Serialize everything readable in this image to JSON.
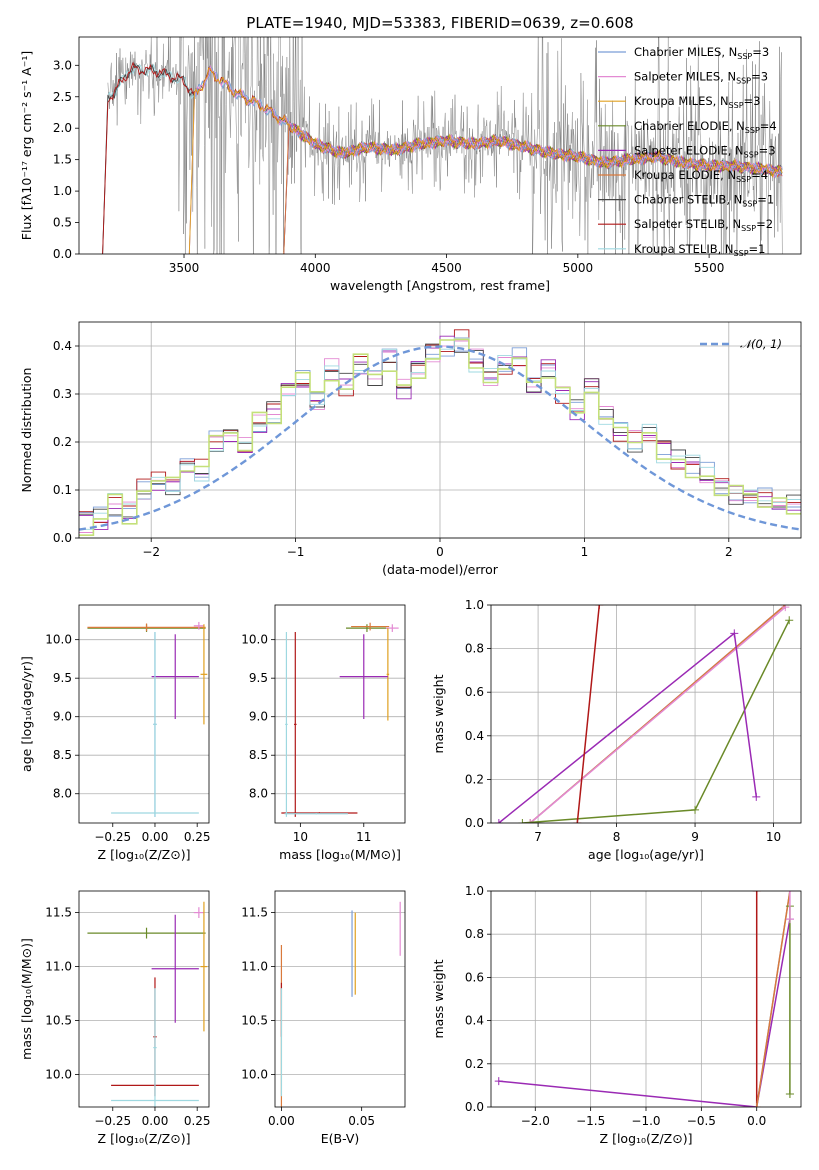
{
  "title": "PLATE=1940, MJD=53383, FIBERID=0639, z=0.608",
  "palette": {
    "Chabrier MILES": "#7b9dd6",
    "Salpeter MILES": "#e38ad3",
    "Kroupa MILES": "#e0a020",
    "Chabrier ELODIE": "#6a8a28",
    "Salpeter ELODIE": "#9a2ab4",
    "Kroupa ELODIE": "#d97a3c",
    "Chabrier STELIB": "#454545",
    "Salpeter STELIB": "#b01818",
    "Kroupa STELIB": "#9ed8e0",
    "data": "#808080",
    "normal": "#6f97d8",
    "green": "#c4e07a"
  },
  "legend": [
    {
      "name": "Chabrier MILES",
      "label": "Chabrier MILES, N",
      "sub": "SSP",
      "suffix": "=3"
    },
    {
      "name": "Salpeter MILES",
      "label": "Salpeter MILES, N",
      "sub": "SSP",
      "suffix": "=3"
    },
    {
      "name": "Kroupa MILES",
      "label": "Kroupa MILES, N",
      "sub": "SSP",
      "suffix": "=3"
    },
    {
      "name": "Chabrier ELODIE",
      "label": "Chabrier ELODIE, N",
      "sub": "SSP",
      "suffix": "=4"
    },
    {
      "name": "Salpeter ELODIE",
      "label": "Salpeter ELODIE, N",
      "sub": "SSP",
      "suffix": "=3"
    },
    {
      "name": "Kroupa ELODIE",
      "label": "Kroupa ELODIE, N",
      "sub": "SSP",
      "suffix": "=4"
    },
    {
      "name": "Chabrier STELIB",
      "label": "Chabrier STELIB, N",
      "sub": "SSP",
      "suffix": "=1"
    },
    {
      "name": "Salpeter STELIB",
      "label": "Salpeter STELIB, N",
      "sub": "SSP",
      "suffix": "=2"
    },
    {
      "name": "Kroupa STELIB",
      "label": "Kroupa STELIB, N",
      "sub": "SSP",
      "suffix": "=1"
    }
  ],
  "chart_data": [
    {
      "id": "spectrum",
      "type": "line",
      "xlabel": "wavelength [Angstrom, rest frame]",
      "ylabel": "Flux [fλ10⁻¹⁷ erg cm⁻² s⁻¹ A⁻¹]",
      "xlim": [
        3100,
        5850
      ],
      "ylim": [
        0,
        3.45
      ],
      "xticks": [
        3500,
        4000,
        4500,
        5000,
        5500
      ],
      "yticks": [
        0.0,
        0.5,
        1.0,
        1.5,
        2.0,
        2.5,
        3.0
      ],
      "model_start": {
        "MILES": 3540,
        "ELODIE": 3900,
        "STELIB": 3210
      },
      "model_continuum": [
        [
          3210,
          2.45
        ],
        [
          3300,
          2.95
        ],
        [
          3400,
          2.9
        ],
        [
          3500,
          2.75
        ],
        [
          3540,
          2.5
        ],
        [
          3600,
          2.9
        ],
        [
          3700,
          2.55
        ],
        [
          3800,
          2.35
        ],
        [
          3900,
          2.05
        ],
        [
          4000,
          1.75
        ],
        [
          4100,
          1.6
        ],
        [
          4200,
          1.7
        ],
        [
          4300,
          1.65
        ],
        [
          4400,
          1.75
        ],
        [
          4500,
          1.8
        ],
        [
          4600,
          1.75
        ],
        [
          4700,
          1.8
        ],
        [
          4800,
          1.7
        ],
        [
          4900,
          1.6
        ],
        [
          5000,
          1.55
        ],
        [
          5100,
          1.45
        ],
        [
          5200,
          1.5
        ],
        [
          5300,
          1.55
        ],
        [
          5400,
          1.45
        ],
        [
          5500,
          1.4
        ],
        [
          5600,
          1.4
        ],
        [
          5700,
          1.35
        ],
        [
          5780,
          1.3
        ]
      ]
    },
    {
      "id": "histogram",
      "type": "histogram",
      "xlabel": "(data-model)/error",
      "ylabel": "Normed distribution",
      "xlim": [
        -2.5,
        2.5
      ],
      "ylim": [
        0,
        0.45
      ],
      "xticks": [
        -2,
        -1,
        0,
        1,
        2
      ],
      "yticks": [
        0.0,
        0.1,
        0.2,
        0.3,
        0.4
      ],
      "bin_edges_start": -2.5,
      "bin_width": 0.1,
      "heights": [
        0.03,
        0.04,
        0.07,
        0.05,
        0.1,
        0.12,
        0.11,
        0.15,
        0.14,
        0.2,
        0.21,
        0.19,
        0.24,
        0.26,
        0.3,
        0.33,
        0.28,
        0.35,
        0.32,
        0.36,
        0.33,
        0.37,
        0.31,
        0.35,
        0.38,
        0.4,
        0.41,
        0.37,
        0.33,
        0.36,
        0.38,
        0.32,
        0.35,
        0.3,
        0.27,
        0.31,
        0.25,
        0.22,
        0.2,
        0.22,
        0.18,
        0.16,
        0.15,
        0.14,
        0.1,
        0.09,
        0.09,
        0.08,
        0.06,
        0.07
      ],
      "normal_label": "𝒩(0, 1)"
    },
    {
      "id": "age-vs-Z",
      "type": "errorbar",
      "xlabel": "Z [log₁₀(Z/Z⊙)]",
      "ylabel": "age  [log₁₀(age/yr)]",
      "xlim": [
        -0.45,
        0.32
      ],
      "ylim": [
        7.62,
        10.45
      ],
      "xticks": [
        -0.25,
        0.0,
        0.25
      ],
      "yticks": [
        8.0,
        8.5,
        9.0,
        9.5,
        10.0
      ],
      "points": [
        {
          "model": "Chabrier ELODIE",
          "x": -0.05,
          "xerr": 0.35,
          "y": 10.15,
          "yerr": 0.05
        },
        {
          "model": "Kroupa ELODIE",
          "x": -0.05,
          "xerr": 0.35,
          "y": 10.16,
          "yerr": 0.05
        },
        {
          "model": "Salpeter MILES",
          "x": 0.26,
          "xerr": 0.03,
          "y": 10.18,
          "yerr": 0.05
        },
        {
          "model": "Kroupa MILES",
          "x": 0.29,
          "xerr": 0.02,
          "y": 9.55,
          "yerr": 0.65
        },
        {
          "model": "Salpeter ELODIE",
          "x": 0.12,
          "xerr": 0.14,
          "y": 9.52,
          "yerr": 0.55
        },
        {
          "model": "Chabrier MILES",
          "x": 0.0,
          "xerr": 0.01,
          "y": 8.9,
          "yerr": 1.2
        },
        {
          "model": "Kroupa STELIB",
          "x": 0.0,
          "xerr": 0.26,
          "y": 7.75,
          "yerr": 0.01
        },
        {
          "model": "Kroupa STELIB",
          "x": 0.0,
          "xerr": 0.01,
          "y": 8.9,
          "yerr": 1.2
        }
      ]
    },
    {
      "id": "age-vs-mass",
      "type": "errorbar",
      "xlabel": "mass [log₁₀(M/M⊙)]",
      "ylabel": "",
      "xlim": [
        9.6,
        11.65
      ],
      "ylim": [
        7.62,
        10.45
      ],
      "xticks": [
        10,
        11
      ],
      "yticks": [
        8.0,
        8.5,
        9.0,
        9.5,
        10.0
      ],
      "points": [
        {
          "model": "Chabrier ELODIE",
          "x": 11.05,
          "xerr": 0.33,
          "y": 10.15,
          "yerr": 0.05
        },
        {
          "model": "Kroupa ELODIE",
          "x": 11.1,
          "xerr": 0.3,
          "y": 10.17,
          "yerr": 0.05
        },
        {
          "model": "Salpeter MILES",
          "x": 11.45,
          "xerr": 0.1,
          "y": 10.15,
          "yerr": 0.05
        },
        {
          "model": "Kroupa MILES",
          "x": 11.38,
          "xerr": 0.02,
          "y": 9.55,
          "yerr": 0.6
        },
        {
          "model": "Salpeter ELODIE",
          "x": 11.0,
          "xerr": 0.38,
          "y": 9.52,
          "yerr": 0.55
        },
        {
          "model": "Salpeter STELIB",
          "x": 9.92,
          "xerr": 0.02,
          "y": 8.9,
          "yerr": 1.2
        },
        {
          "model": "Salpeter STELIB",
          "x": 10.3,
          "xerr": 0.6,
          "y": 7.75,
          "yerr": 0.01
        },
        {
          "model": "Kroupa STELIB",
          "x": 9.78,
          "xerr": 0.02,
          "y": 8.9,
          "yerr": 1.2
        },
        {
          "model": "Kroupa STELIB",
          "x": 10.25,
          "xerr": 0.5,
          "y": 7.74,
          "yerr": 0.01
        }
      ]
    },
    {
      "id": "weight-vs-age",
      "type": "line",
      "xlabel": "age  [log₁₀(age/yr)]",
      "ylabel": "mass weight",
      "xlim": [
        6.4,
        10.35
      ],
      "ylim": [
        0,
        1
      ],
      "xticks": [
        7,
        8,
        9,
        10
      ],
      "yticks": [
        0.0,
        0.2,
        0.4,
        0.6,
        0.8,
        1.0
      ],
      "series": [
        {
          "model": "Chabrier MILES",
          "x": [
            6.9,
            10.15
          ],
          "y": [
            0.0,
            1.0
          ]
        },
        {
          "model": "Kroupa ELODIE",
          "x": [
            6.9,
            10.15
          ],
          "y": [
            0.0,
            1.0
          ]
        },
        {
          "model": "Salpeter MILES",
          "x": [
            6.9,
            10.15
          ],
          "y": [
            0.0,
            0.99
          ]
        },
        {
          "model": "Chabrier ELODIE",
          "x": [
            6.8,
            9.0,
            10.2
          ],
          "y": [
            0.0,
            0.06,
            0.93
          ]
        },
        {
          "model": "Salpeter ELODIE",
          "x": [
            6.5,
            9.5,
            9.78
          ],
          "y": [
            0.0,
            0.87,
            0.12
          ]
        },
        {
          "model": "Salpeter STELIB",
          "x": [
            7.5,
            7.78
          ],
          "y": [
            0.0,
            1.0
          ]
        }
      ]
    },
    {
      "id": "mass-vs-Z",
      "type": "errorbar",
      "xlabel": "Z [log₁₀(Z/Z⊙)]",
      "ylabel": "mass [log₁₀(M/M⊙)]",
      "xlim": [
        -0.45,
        0.32
      ],
      "ylim": [
        9.7,
        11.7
      ],
      "xticks": [
        -0.25,
        0.0,
        0.25
      ],
      "yticks": [
        10.0,
        10.5,
        11.0,
        11.5
      ],
      "points": [
        {
          "model": "Chabrier ELODIE",
          "x": -0.05,
          "xerr": 0.35,
          "y": 11.31,
          "yerr": 0.05
        },
        {
          "model": "Salpeter MILES",
          "x": 0.26,
          "xerr": 0.03,
          "y": 11.5,
          "yerr": 0.05
        },
        {
          "model": "Kroupa MILES",
          "x": 0.29,
          "xerr": 0.02,
          "y": 11.0,
          "yerr": 0.6
        },
        {
          "model": "Salpeter ELODIE",
          "x": 0.12,
          "xerr": 0.14,
          "y": 10.98,
          "yerr": 0.5
        },
        {
          "model": "Salpeter STELIB",
          "x": 0.0,
          "xerr": 0.26,
          "y": 9.9,
          "yerr": 0.01
        },
        {
          "model": "Salpeter STELIB",
          "x": 0.0,
          "xerr": 0.01,
          "y": 10.35,
          "yerr": 0.55
        },
        {
          "model": "Kroupa STELIB",
          "x": 0.0,
          "xerr": 0.26,
          "y": 9.76,
          "yerr": 0.01
        },
        {
          "model": "Kroupa STELIB",
          "x": 0.0,
          "xerr": 0.01,
          "y": 10.25,
          "yerr": 0.55
        }
      ]
    },
    {
      "id": "mass-vs-EBV",
      "type": "errorbar",
      "xlabel": "E(B-V)",
      "ylabel": "",
      "xlim": [
        -0.004,
        0.077
      ],
      "ylim": [
        9.7,
        11.7
      ],
      "xticks": [
        0.0,
        0.05
      ],
      "xtick_labels": [
        "0.00",
        "0.05"
      ],
      "yticks": [
        10.0,
        10.5,
        11.0,
        11.5
      ],
      "points": [
        {
          "model": "Chabrier MILES",
          "x": 0.044,
          "xerr": 0.0,
          "y": 11.12,
          "yerr": 0.4
        },
        {
          "model": "Kroupa MILES",
          "x": 0.046,
          "xerr": 0.0,
          "y": 11.12,
          "yerr": 0.38
        },
        {
          "model": "Salpeter MILES",
          "x": 0.074,
          "xerr": 0.0,
          "y": 11.35,
          "yerr": 0.25
        },
        {
          "model": "Kroupa ELODIE",
          "x": 0.0,
          "xerr": 0.0,
          "y": 10.45,
          "yerr": 0.75
        },
        {
          "model": "Salpeter STELIB",
          "x": 0.0,
          "xerr": 0.0,
          "y": 10.6,
          "yerr": 0.25
        },
        {
          "model": "Kroupa STELIB",
          "x": 0.0,
          "xerr": 0.0,
          "y": 10.3,
          "yerr": 0.5
        }
      ]
    },
    {
      "id": "weight-vs-Z",
      "type": "line",
      "xlabel": "Z [log₁₀(Z/Z⊙)]",
      "ylabel": "mass weight",
      "xlim": [
        -2.4,
        0.4
      ],
      "ylim": [
        0,
        1
      ],
      "xticks": [
        -2.0,
        -1.5,
        -1.0,
        -0.5,
        0.0
      ],
      "yticks": [
        0.0,
        0.2,
        0.4,
        0.6,
        0.8,
        1.0
      ],
      "series": [
        {
          "model": "Salpeter ELODIE",
          "x": [
            -2.33,
            0.0,
            0.3
          ],
          "y": [
            0.12,
            0.0,
            0.87
          ]
        },
        {
          "model": "Salpeter STELIB",
          "x": [
            0.0,
            0.0
          ],
          "y": [
            0.0,
            1.0
          ]
        },
        {
          "model": "Chabrier MILES",
          "x": [
            0.0,
            0.3
          ],
          "y": [
            0.0,
            1.0
          ]
        },
        {
          "model": "Kroupa ELODIE",
          "x": [
            0.0,
            0.3
          ],
          "y": [
            0.0,
            1.0
          ]
        },
        {
          "model": "Chabrier ELODIE",
          "x": [
            0.3,
            0.3,
            0.3
          ],
          "y": [
            0.06,
            0.93,
            0.06
          ]
        },
        {
          "model": "Salpeter MILES",
          "x": [
            0.3,
            0.3
          ],
          "y": [
            0.87,
            1.0
          ]
        }
      ]
    }
  ]
}
